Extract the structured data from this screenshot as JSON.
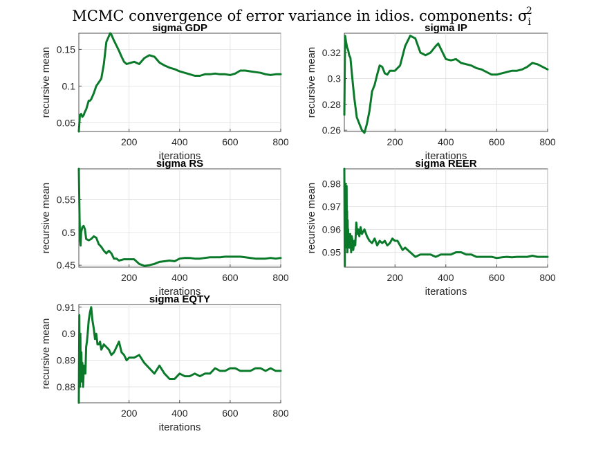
{
  "figure_title": "MCMC convergence of error variance in idios. components: σ",
  "figure_title_sub": "i",
  "figure_title_sup": "2",
  "line_color": "#0a7a2a",
  "chart_data": [
    {
      "type": "line",
      "title": "sigma GDP",
      "xlabel": "iterations",
      "ylabel": "recursive mean",
      "xlim": [
        1,
        800
      ],
      "ylim": [
        0.038,
        0.172
      ],
      "xticks": [
        200,
        400,
        600,
        800
      ],
      "yticks": [
        0.05,
        0.1,
        0.15
      ],
      "ytick_labels": [
        "0.05",
        "0.1",
        "0.15"
      ],
      "grid": true,
      "x": [
        1,
        5,
        10,
        15,
        20,
        25,
        30,
        40,
        45,
        50,
        60,
        70,
        80,
        90,
        100,
        110,
        120,
        125,
        130,
        140,
        150,
        160,
        170,
        180,
        190,
        200,
        220,
        240,
        260,
        280,
        300,
        320,
        340,
        360,
        380,
        400,
        420,
        440,
        460,
        480,
        500,
        520,
        540,
        560,
        580,
        600,
        620,
        640,
        660,
        680,
        700,
        720,
        740,
        760,
        780,
        800
      ],
      "y": [
        0.038,
        0.06,
        0.062,
        0.058,
        0.06,
        0.065,
        0.068,
        0.08,
        0.08,
        0.082,
        0.09,
        0.1,
        0.105,
        0.11,
        0.13,
        0.16,
        0.168,
        0.172,
        0.17,
        0.162,
        0.155,
        0.148,
        0.14,
        0.133,
        0.13,
        0.131,
        0.133,
        0.13,
        0.138,
        0.142,
        0.14,
        0.132,
        0.128,
        0.125,
        0.123,
        0.12,
        0.118,
        0.116,
        0.114,
        0.114,
        0.116,
        0.116,
        0.117,
        0.116,
        0.116,
        0.115,
        0.117,
        0.121,
        0.121,
        0.12,
        0.119,
        0.118,
        0.116,
        0.115,
        0.116,
        0.116
      ]
    },
    {
      "type": "line",
      "title": "sigma IP",
      "xlabel": "iterations",
      "ylabel": "recursive mean",
      "xlim": [
        1,
        800
      ],
      "ylim": [
        0.259,
        0.335
      ],
      "xticks": [
        200,
        400,
        600,
        800
      ],
      "yticks": [
        0.26,
        0.28,
        0.3,
        0.32
      ],
      "ytick_labels": [
        "0.26",
        "0.28",
        "0.3",
        "0.32"
      ],
      "grid": true,
      "x": [
        1,
        4,
        8,
        12,
        16,
        20,
        25,
        30,
        35,
        40,
        50,
        60,
        70,
        80,
        90,
        100,
        110,
        120,
        130,
        140,
        150,
        160,
        170,
        180,
        200,
        220,
        240,
        260,
        280,
        300,
        320,
        340,
        360,
        370,
        380,
        400,
        420,
        440,
        460,
        480,
        500,
        520,
        540,
        560,
        580,
        600,
        620,
        640,
        660,
        680,
        700,
        720,
        740,
        760,
        780,
        800
      ],
      "y": [
        0.272,
        0.333,
        0.328,
        0.324,
        0.322,
        0.318,
        0.316,
        0.305,
        0.295,
        0.285,
        0.27,
        0.265,
        0.26,
        0.258,
        0.265,
        0.275,
        0.29,
        0.295,
        0.303,
        0.31,
        0.309,
        0.304,
        0.303,
        0.306,
        0.306,
        0.31,
        0.325,
        0.333,
        0.331,
        0.32,
        0.318,
        0.32,
        0.325,
        0.327,
        0.323,
        0.315,
        0.314,
        0.315,
        0.312,
        0.311,
        0.31,
        0.308,
        0.307,
        0.305,
        0.303,
        0.303,
        0.304,
        0.305,
        0.306,
        0.306,
        0.307,
        0.309,
        0.312,
        0.311,
        0.309,
        0.307
      ]
    },
    {
      "type": "line",
      "title": "sigma RS",
      "xlabel": "iterations",
      "ylabel": "recursive mean",
      "xlim": [
        1,
        800
      ],
      "ylim": [
        0.447,
        0.597
      ],
      "xticks": [
        200,
        400,
        600,
        800
      ],
      "yticks": [
        0.45,
        0.5,
        0.55
      ],
      "ytick_labels": [
        "0.45",
        "0.5",
        "0.55"
      ],
      "grid": true,
      "x": [
        1,
        4,
        6,
        8,
        10,
        15,
        20,
        25,
        30,
        40,
        50,
        60,
        70,
        80,
        90,
        100,
        110,
        120,
        130,
        140,
        150,
        160,
        180,
        200,
        220,
        240,
        260,
        280,
        300,
        320,
        340,
        360,
        380,
        400,
        420,
        440,
        460,
        480,
        500,
        520,
        540,
        560,
        580,
        600,
        620,
        640,
        660,
        680,
        700,
        720,
        740,
        760,
        780,
        800
      ],
      "y": [
        0.597,
        0.52,
        0.49,
        0.48,
        0.5,
        0.508,
        0.51,
        0.505,
        0.49,
        0.488,
        0.49,
        0.494,
        0.492,
        0.482,
        0.478,
        0.472,
        0.468,
        0.472,
        0.468,
        0.46,
        0.46,
        0.457,
        0.459,
        0.459,
        0.459,
        0.452,
        0.449,
        0.45,
        0.452,
        0.455,
        0.456,
        0.457,
        0.456,
        0.46,
        0.461,
        0.461,
        0.46,
        0.46,
        0.461,
        0.462,
        0.462,
        0.462,
        0.463,
        0.463,
        0.463,
        0.463,
        0.462,
        0.461,
        0.46,
        0.46,
        0.46,
        0.461,
        0.46,
        0.461
      ]
    },
    {
      "type": "line",
      "title": "sigma REER",
      "xlabel": "iterations",
      "ylabel": "recursive mean",
      "xlim": [
        1,
        800
      ],
      "ylim": [
        0.9435,
        0.9865
      ],
      "xticks": [
        200,
        400,
        600,
        800
      ],
      "yticks": [
        0.95,
        0.96,
        0.97,
        0.98
      ],
      "ytick_labels": [
        "0.95",
        "0.96",
        "0.97",
        "0.98"
      ],
      "grid": true,
      "x": [
        1,
        2,
        3,
        4,
        5,
        6,
        7,
        8,
        9,
        10,
        11,
        12,
        13,
        14,
        15,
        16,
        17,
        18,
        19,
        20,
        22,
        24,
        26,
        28,
        30,
        33,
        36,
        40,
        44,
        48,
        52,
        56,
        60,
        65,
        70,
        75,
        80,
        90,
        100,
        110,
        120,
        130,
        140,
        150,
        160,
        170,
        180,
        190,
        200,
        210,
        220,
        230,
        240,
        260,
        280,
        300,
        320,
        340,
        360,
        380,
        400,
        420,
        440,
        460,
        480,
        500,
        520,
        540,
        560,
        580,
        600,
        620,
        640,
        660,
        680,
        700,
        720,
        740,
        760,
        780,
        800
      ],
      "y": [
        0.9865,
        0.96,
        0.944,
        0.975,
        0.952,
        0.98,
        0.962,
        0.974,
        0.953,
        0.979,
        0.955,
        0.968,
        0.95,
        0.964,
        0.952,
        0.96,
        0.953,
        0.958,
        0.955,
        0.956,
        0.952,
        0.958,
        0.954,
        0.95,
        0.957,
        0.955,
        0.951,
        0.955,
        0.953,
        0.963,
        0.958,
        0.96,
        0.957,
        0.961,
        0.958,
        0.959,
        0.96,
        0.957,
        0.955,
        0.954,
        0.956,
        0.953,
        0.955,
        0.954,
        0.955,
        0.953,
        0.954,
        0.956,
        0.955,
        0.955,
        0.953,
        0.951,
        0.952,
        0.95,
        0.948,
        0.949,
        0.949,
        0.949,
        0.948,
        0.949,
        0.949,
        0.949,
        0.95,
        0.95,
        0.949,
        0.949,
        0.948,
        0.948,
        0.948,
        0.948,
        0.9475,
        0.9478,
        0.948,
        0.9478,
        0.948,
        0.948,
        0.948,
        0.9485,
        0.948,
        0.948,
        0.948
      ]
    },
    {
      "type": "line",
      "title": "sigma EQTY",
      "xlabel": "iterations",
      "ylabel": "recursive mean",
      "xlim": [
        1,
        800
      ],
      "ylim": [
        0.874,
        0.911
      ],
      "xticks": [
        200,
        400,
        600,
        800
      ],
      "yticks": [
        0.88,
        0.89,
        0.9,
        0.91
      ],
      "ytick_labels": [
        "0.88",
        "0.89",
        "0.9",
        "0.91"
      ],
      "grid": true,
      "x": [
        1,
        3,
        5,
        7,
        9,
        11,
        13,
        15,
        18,
        21,
        24,
        27,
        30,
        33,
        36,
        40,
        45,
        50,
        55,
        60,
        65,
        70,
        75,
        80,
        85,
        90,
        100,
        110,
        120,
        130,
        140,
        150,
        160,
        170,
        180,
        190,
        200,
        220,
        240,
        260,
        280,
        300,
        320,
        340,
        360,
        380,
        400,
        420,
        440,
        460,
        480,
        500,
        520,
        540,
        560,
        580,
        600,
        620,
        640,
        660,
        680,
        700,
        720,
        740,
        760,
        780,
        800
      ],
      "y": [
        0.874,
        0.907,
        0.88,
        0.9,
        0.885,
        0.893,
        0.882,
        0.889,
        0.88,
        0.888,
        0.887,
        0.885,
        0.895,
        0.897,
        0.9,
        0.905,
        0.908,
        0.91,
        0.905,
        0.902,
        0.898,
        0.9,
        0.896,
        0.896,
        0.897,
        0.894,
        0.896,
        0.895,
        0.894,
        0.892,
        0.893,
        0.895,
        0.897,
        0.893,
        0.892,
        0.89,
        0.891,
        0.891,
        0.892,
        0.889,
        0.887,
        0.885,
        0.888,
        0.885,
        0.883,
        0.883,
        0.885,
        0.884,
        0.884,
        0.885,
        0.884,
        0.885,
        0.885,
        0.887,
        0.886,
        0.886,
        0.887,
        0.887,
        0.886,
        0.886,
        0.886,
        0.887,
        0.887,
        0.886,
        0.887,
        0.886,
        0.886
      ]
    }
  ]
}
